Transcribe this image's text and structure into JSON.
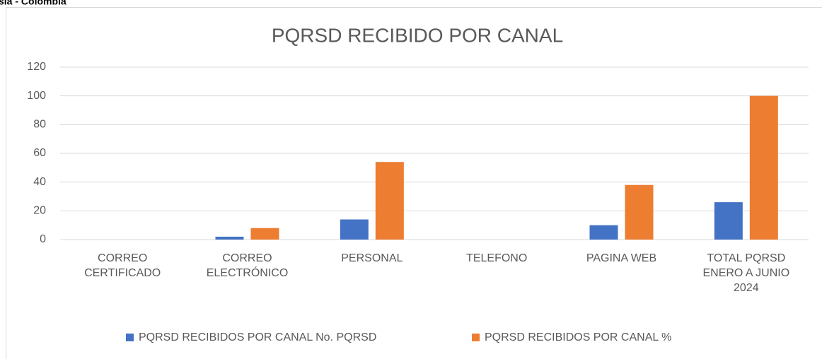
{
  "header": "sia - Colombia",
  "chart_data": {
    "type": "bar",
    "title": "PQRSD RECIBIDO POR CANAL",
    "categories": [
      [
        "CORREO",
        "CERTIFICADO"
      ],
      [
        "CORREO",
        "ELECTRÓNICO"
      ],
      [
        "PERSONAL"
      ],
      [
        "TELEFONO"
      ],
      [
        "PAGINA WEB"
      ],
      [
        "TOTAL  PQRSD",
        "ENERO A JUNIO",
        "2024"
      ]
    ],
    "series": [
      {
        "name": "PQRSD RECIBIDOS POR CANAL  No. PQRSD",
        "color": "#4472c4",
        "values": [
          0,
          2,
          14,
          0,
          10,
          26
        ]
      },
      {
        "name": "PQRSD RECIBIDOS POR CANAL  %",
        "color": "#ed7d31",
        "values": [
          0,
          8,
          54,
          0,
          38,
          100
        ]
      }
    ],
    "ylim": [
      0,
      120
    ],
    "yticks": [
      0,
      20,
      40,
      60,
      80,
      100,
      120
    ],
    "grid": true,
    "legend": "bottom"
  }
}
